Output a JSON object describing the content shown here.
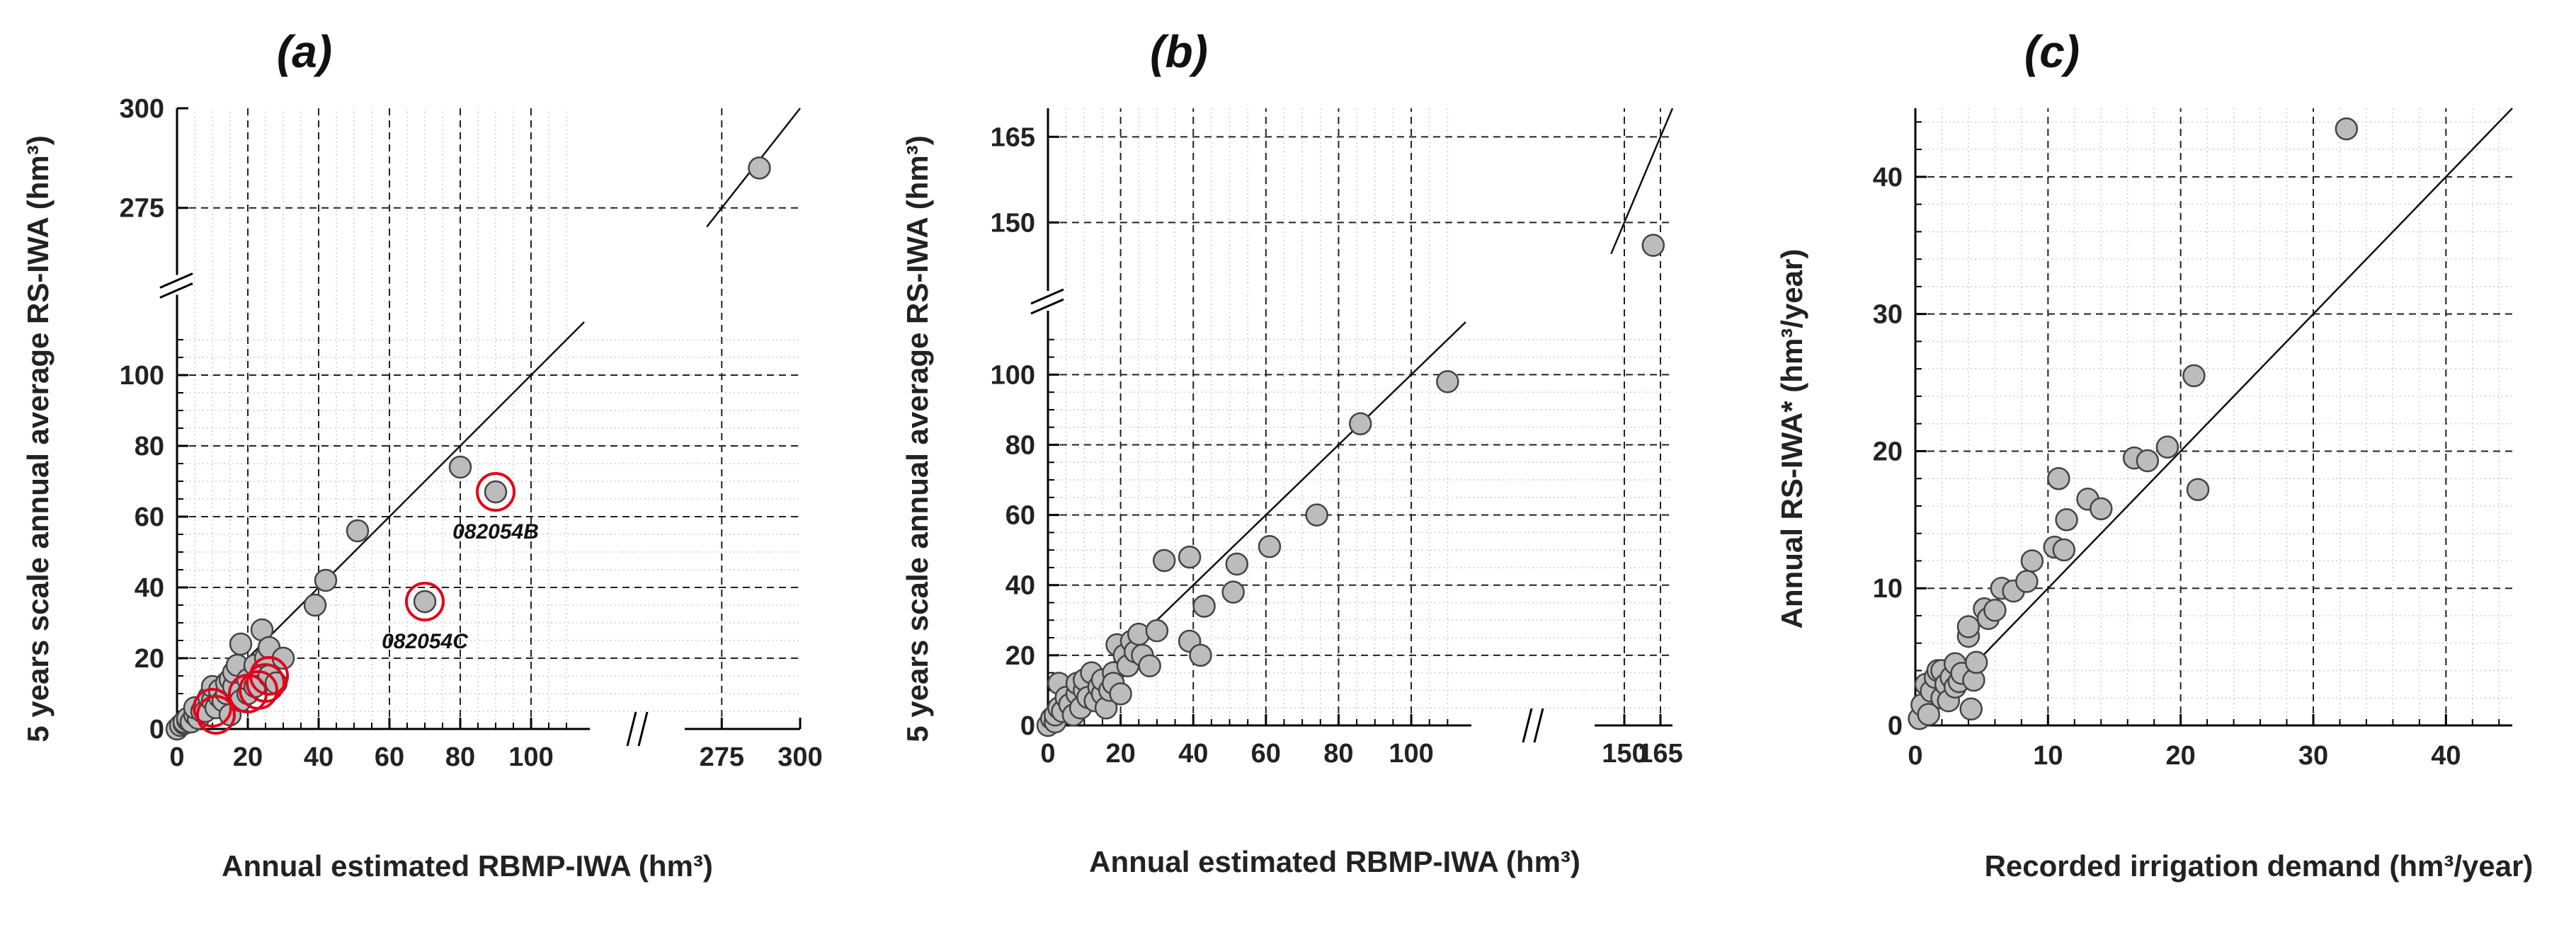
{
  "colors": {
    "marker_fill": "#bcbcbc",
    "marker_stroke": "#444444",
    "highlight": "#e3001b",
    "axis": "#000000"
  },
  "chart_data": [
    {
      "type": "scatter",
      "panel": "(a)",
      "xlabel": "Annual estimated RBMP-IWA (hm³)",
      "ylabel": "5 years scale annual average RS-IWA (hm³)",
      "x_ticks_low": [
        "0",
        "20",
        "40",
        "60",
        "80",
        "100"
      ],
      "x_ticks_high": [
        "275",
        "300"
      ],
      "y_ticks_low": [
        "0",
        "20",
        "40",
        "60",
        "80",
        "100"
      ],
      "y_ticks_high": [
        "275",
        "300"
      ],
      "x_lower_range": [
        0,
        115
      ],
      "x_upper_range": [
        265,
        300
      ],
      "y_lower_range": [
        0,
        115
      ],
      "y_upper_range": [
        265,
        300
      ],
      "identity_line": true,
      "points": [
        [
          0,
          0
        ],
        [
          1,
          1
        ],
        [
          2,
          1.5
        ],
        [
          2,
          2
        ],
        [
          3,
          2.5
        ],
        [
          3,
          3
        ],
        [
          4,
          2
        ],
        [
          5,
          4
        ],
        [
          6,
          3
        ],
        [
          5,
          6
        ],
        [
          7,
          5
        ],
        [
          8,
          7
        ],
        [
          8,
          5
        ],
        [
          9,
          9
        ],
        [
          10,
          8
        ],
        [
          10,
          12
        ],
        [
          11,
          6
        ],
        [
          12,
          9
        ],
        [
          12,
          11
        ],
        [
          13,
          8
        ],
        [
          14,
          10
        ],
        [
          14,
          13
        ],
        [
          15,
          4
        ],
        [
          15,
          14
        ],
        [
          16,
          12
        ],
        [
          16,
          16
        ],
        [
          17,
          18
        ],
        [
          18,
          8
        ],
        [
          18,
          24
        ],
        [
          20,
          10
        ],
        [
          20,
          14
        ],
        [
          22,
          12
        ],
        [
          22,
          18
        ],
        [
          24,
          28
        ],
        [
          25,
          20
        ],
        [
          26,
          23
        ],
        [
          26,
          15
        ],
        [
          28,
          13
        ],
        [
          30,
          20
        ],
        [
          39,
          35
        ],
        [
          42,
          42
        ],
        [
          51,
          56
        ],
        [
          80,
          74
        ],
        [
          90,
          67
        ],
        [
          70,
          36
        ],
        [
          287,
          285
        ]
      ],
      "highlighted_points": [
        [
          90,
          67
        ],
        [
          70,
          36
        ],
        [
          10,
          6
        ],
        [
          11,
          4
        ],
        [
          20,
          10
        ],
        [
          25,
          13
        ],
        [
          26,
          15
        ],
        [
          23,
          11
        ]
      ],
      "annotations": [
        {
          "text": "082054B",
          "x": 90,
          "y": 67
        },
        {
          "text": "082054C",
          "x": 70,
          "y": 36
        }
      ]
    },
    {
      "type": "scatter",
      "panel": "(b)",
      "xlabel": "Annual estimated RBMP-IWA (hm³)",
      "ylabel": "5 years scale annual average RS-IWA (hm³)",
      "x_ticks_low": [
        "0",
        "20",
        "40",
        "60",
        "80",
        "100"
      ],
      "x_ticks_high": [
        "150",
        "165"
      ],
      "y_ticks_low": [
        "0",
        "20",
        "40",
        "60",
        "80",
        "100"
      ],
      "y_ticks_high": [
        "150",
        "165"
      ],
      "x_lower_range": [
        0,
        115
      ],
      "x_upper_range": [
        140,
        170
      ],
      "y_lower_range": [
        0,
        115
      ],
      "y_upper_range": [
        140,
        170
      ],
      "identity_line": true,
      "points": [
        [
          0,
          0
        ],
        [
          1,
          2
        ],
        [
          2,
          1
        ],
        [
          2,
          3
        ],
        [
          3,
          5
        ],
        [
          3,
          12
        ],
        [
          4,
          4
        ],
        [
          5,
          8
        ],
        [
          6,
          6
        ],
        [
          7,
          3
        ],
        [
          8,
          9
        ],
        [
          8,
          12
        ],
        [
          9,
          5
        ],
        [
          10,
          10
        ],
        [
          10,
          13
        ],
        [
          11,
          8
        ],
        [
          12,
          15
        ],
        [
          13,
          7
        ],
        [
          14,
          11
        ],
        [
          15,
          9
        ],
        [
          15,
          13
        ],
        [
          16,
          5
        ],
        [
          17,
          10
        ],
        [
          18,
          15
        ],
        [
          18,
          12
        ],
        [
          19,
          23
        ],
        [
          20,
          9
        ],
        [
          21,
          20
        ],
        [
          22,
          17
        ],
        [
          23,
          24
        ],
        [
          24,
          21
        ],
        [
          25,
          26
        ],
        [
          26,
          20
        ],
        [
          28,
          17
        ],
        [
          30,
          27
        ],
        [
          32,
          47
        ],
        [
          39,
          48
        ],
        [
          39,
          24
        ],
        [
          42,
          20
        ],
        [
          43,
          34
        ],
        [
          51,
          38
        ],
        [
          52,
          46
        ],
        [
          61,
          51
        ],
        [
          74,
          60
        ],
        [
          86,
          86
        ],
        [
          110,
          98
        ],
        [
          162,
          146
        ]
      ]
    },
    {
      "type": "scatter",
      "panel": "(c)",
      "xlabel": "Recorded irrigation demand (hm³/year)",
      "ylabel": "Annual RS-IWA* (hm³/year)",
      "x_ticks": [
        "0",
        "10",
        "20",
        "30",
        "40"
      ],
      "y_ticks": [
        "0",
        "10",
        "20",
        "30",
        "40"
      ],
      "xlim": [
        0,
        45
      ],
      "ylim": [
        0,
        45
      ],
      "identity_line": true,
      "points": [
        [
          0.3,
          0.5
        ],
        [
          0.5,
          1.5
        ],
        [
          0.8,
          3
        ],
        [
          1,
          0.8
        ],
        [
          1.2,
          2.5
        ],
        [
          1.5,
          3.5
        ],
        [
          1.7,
          4
        ],
        [
          2,
          2
        ],
        [
          2,
          4
        ],
        [
          2.3,
          3
        ],
        [
          2.5,
          1.8
        ],
        [
          2.7,
          3.5
        ],
        [
          3,
          4.5
        ],
        [
          3,
          2.8
        ],
        [
          3.3,
          3.2
        ],
        [
          3.5,
          3.8
        ],
        [
          4,
          6.5
        ],
        [
          4,
          7.2
        ],
        [
          4.2,
          1.2
        ],
        [
          4.4,
          3.3
        ],
        [
          4.6,
          4.6
        ],
        [
          5.2,
          8.5
        ],
        [
          5.5,
          7.8
        ],
        [
          6,
          8.4
        ],
        [
          6.5,
          10
        ],
        [
          7.4,
          9.8
        ],
        [
          8.4,
          10.5
        ],
        [
          8.8,
          12
        ],
        [
          10.5,
          13
        ],
        [
          10.8,
          18
        ],
        [
          11.2,
          12.8
        ],
        [
          11.4,
          15
        ],
        [
          13,
          16.5
        ],
        [
          14,
          15.8
        ],
        [
          16.5,
          19.5
        ],
        [
          17.5,
          19.3
        ],
        [
          19,
          20.3
        ],
        [
          21,
          25.5
        ],
        [
          21.3,
          17.2
        ],
        [
          32.5,
          43.5
        ]
      ]
    }
  ]
}
